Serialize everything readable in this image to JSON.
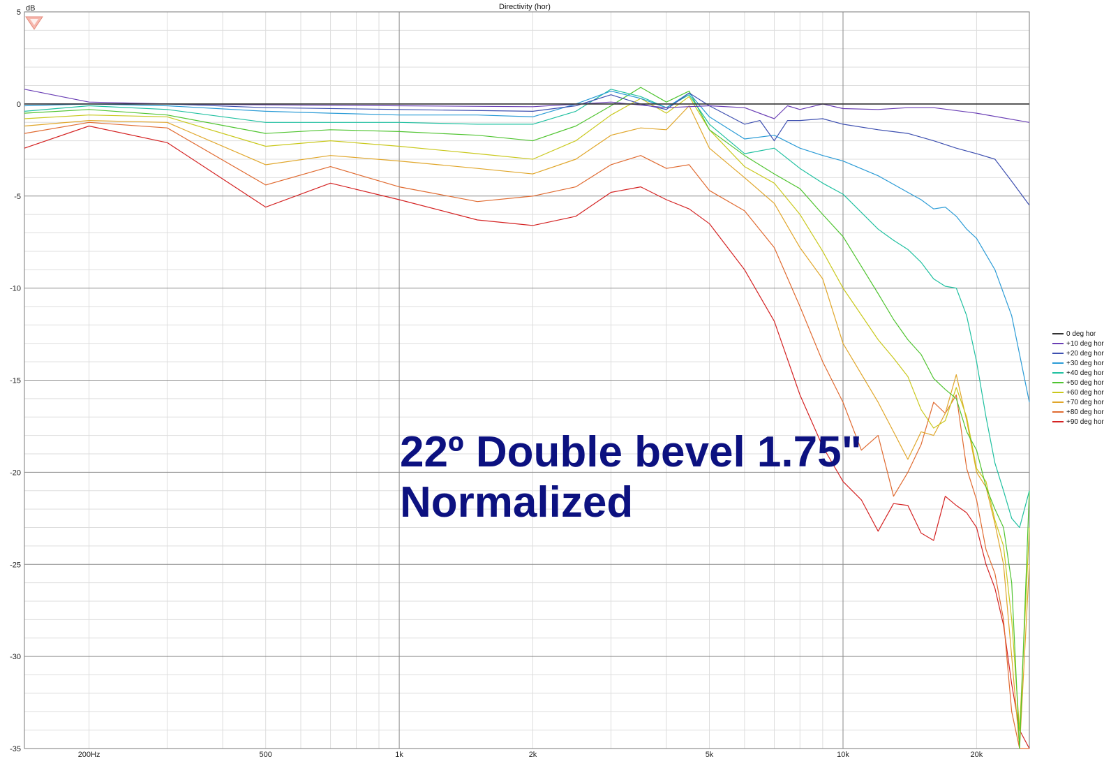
{
  "window": {
    "title": "Directivity (hor)"
  },
  "chart_data": {
    "type": "line",
    "title": "Directivity (hor)",
    "ylabel": "dB",
    "xlabel": "",
    "x_scale": "log",
    "xlim": [
      143,
      26300
    ],
    "ylim": [
      -35,
      5
    ],
    "grid": true,
    "legend_position": "right",
    "x_tick_labels": [
      {
        "value": 200,
        "label": "200Hz"
      },
      {
        "value": 500,
        "label": "500"
      },
      {
        "value": 1000,
        "label": "1k"
      },
      {
        "value": 2000,
        "label": "2k"
      },
      {
        "value": 5000,
        "label": "5k"
      },
      {
        "value": 10000,
        "label": "10k"
      },
      {
        "value": 20000,
        "label": "20k"
      }
    ],
    "y_tick_labels": [
      {
        "value": 5,
        "label": "5"
      },
      {
        "value": 0,
        "label": "0"
      },
      {
        "value": -5,
        "label": "-5"
      },
      {
        "value": -10,
        "label": "-10"
      },
      {
        "value": -15,
        "label": "-15"
      },
      {
        "value": -20,
        "label": "-20"
      },
      {
        "value": -25,
        "label": "-25"
      },
      {
        "value": -30,
        "label": "-30"
      },
      {
        "value": -35,
        "label": "-35"
      }
    ],
    "annotation": [
      "22º Double bevel 1.75\"",
      "Normalized"
    ],
    "series": [
      {
        "name": "0 deg hor",
        "color": "#333333",
        "x": [
          143,
          1000,
          2000,
          5000,
          10000,
          20000,
          26300
        ],
        "y": [
          0,
          0,
          0,
          0,
          0,
          0,
          0
        ]
      },
      {
        "name": "+10 deg hor",
        "color": "#6a3fb5",
        "x": [
          143,
          200,
          300,
          500,
          1000,
          2000,
          3000,
          4000,
          5000,
          6000,
          7000,
          7500,
          8000,
          9000,
          10000,
          12000,
          14000,
          16000,
          20000,
          26300
        ],
        "y": [
          0.8,
          0.1,
          0,
          -0.05,
          -0.1,
          -0.15,
          0.1,
          -0.2,
          -0.1,
          -0.2,
          -0.8,
          -0.1,
          -0.3,
          0,
          -0.25,
          -0.3,
          -0.2,
          -0.2,
          -0.5,
          -1.0
        ]
      },
      {
        "name": "+20 deg hor",
        "color": "#3d4fb0",
        "x": [
          143,
          200,
          300,
          500,
          1000,
          2000,
          2500,
          3000,
          3500,
          4000,
          4500,
          5000,
          6000,
          6500,
          7000,
          7500,
          8000,
          9000,
          10000,
          12000,
          14000,
          16000,
          18000,
          20000,
          22000,
          24000,
          26300
        ],
        "y": [
          0,
          0,
          0,
          -0.2,
          -0.3,
          -0.4,
          -0.1,
          0.5,
          0,
          -0.3,
          0.6,
          -0.1,
          -1.1,
          -0.9,
          -2.0,
          -0.9,
          -0.9,
          -0.8,
          -1.1,
          -1.4,
          -1.6,
          -2.0,
          -2.4,
          -2.7,
          -3.0,
          -4.2,
          -5.5
        ]
      },
      {
        "name": "+30 deg hor",
        "color": "#2a9bd6",
        "x": [
          143,
          200,
          300,
          500,
          700,
          1000,
          1500,
          2000,
          2500,
          3000,
          3500,
          4000,
          4500,
          5000,
          6000,
          7000,
          8000,
          9000,
          10000,
          12000,
          14000,
          15000,
          16000,
          17000,
          18000,
          19000,
          20000,
          22000,
          24000,
          26300
        ],
        "y": [
          -0.1,
          0,
          -0.1,
          -0.4,
          -0.5,
          -0.6,
          -0.6,
          -0.7,
          0,
          0.7,
          0.3,
          -0.2,
          0.6,
          -0.7,
          -1.9,
          -1.7,
          -2.4,
          -2.8,
          -3.1,
          -3.9,
          -4.8,
          -5.2,
          -5.7,
          -5.6,
          -6.1,
          -6.8,
          -7.3,
          -9.0,
          -11.5,
          -16.2
        ]
      },
      {
        "name": "+40 deg hor",
        "color": "#1fc0a0",
        "x": [
          143,
          200,
          300,
          500,
          700,
          1000,
          1500,
          2000,
          2500,
          3000,
          3500,
          4000,
          4500,
          5000,
          6000,
          7000,
          8000,
          9000,
          10000,
          12000,
          13000,
          14000,
          15000,
          16000,
          17000,
          18000,
          19000,
          20000,
          21000,
          22000,
          23000,
          24000,
          25000,
          26300
        ],
        "y": [
          -0.4,
          -0.1,
          -0.3,
          -1.0,
          -1.0,
          -1.0,
          -1.1,
          -1.1,
          -0.4,
          0.8,
          0.4,
          -0.2,
          0.5,
          -1.1,
          -2.7,
          -2.4,
          -3.5,
          -4.3,
          -4.9,
          -6.8,
          -7.4,
          -7.9,
          -8.6,
          -9.5,
          -9.9,
          -10.0,
          -11.5,
          -14.0,
          -17.0,
          -19.5,
          -21.0,
          -22.5,
          -23.0,
          -21.0
        ]
      },
      {
        "name": "+50 deg hor",
        "color": "#4fc430",
        "x": [
          143,
          200,
          300,
          500,
          700,
          1000,
          1500,
          2000,
          2500,
          3000,
          3500,
          4000,
          4500,
          5000,
          6000,
          7000,
          8000,
          9000,
          10000,
          12000,
          13000,
          14000,
          15000,
          16000,
          17000,
          18000,
          19000,
          20000,
          21000,
          22000,
          23000,
          24000,
          25000,
          26300
        ],
        "y": [
          -0.5,
          -0.3,
          -0.6,
          -1.6,
          -1.4,
          -1.5,
          -1.7,
          -2.0,
          -1.2,
          -0.1,
          0.9,
          0.1,
          0.7,
          -1.4,
          -2.8,
          -3.8,
          -4.6,
          -6.0,
          -7.2,
          -10.3,
          -11.7,
          -12.8,
          -13.6,
          -14.9,
          -15.5,
          -16.0,
          -17.8,
          -18.8,
          -20.8,
          -22.0,
          -23.0,
          -26.0,
          -35.0,
          -21.0
        ]
      },
      {
        "name": "+60 deg hor",
        "color": "#c9c81c",
        "x": [
          143,
          200,
          300,
          500,
          700,
          1000,
          1500,
          2000,
          2500,
          3000,
          3500,
          4000,
          4500,
          5000,
          6000,
          7000,
          8000,
          9000,
          10000,
          12000,
          13000,
          14000,
          15000,
          16000,
          17000,
          18000,
          19000,
          20000,
          21000,
          22000,
          23000,
          24000,
          25000,
          26300
        ],
        "y": [
          -0.8,
          -0.6,
          -0.7,
          -2.3,
          -2.0,
          -2.3,
          -2.7,
          -3.0,
          -2.0,
          -0.6,
          0.3,
          -0.5,
          0.4,
          -1.4,
          -3.4,
          -4.3,
          -6.0,
          -8.0,
          -10.0,
          -12.8,
          -13.8,
          -14.8,
          -16.6,
          -17.6,
          -17.2,
          -15.4,
          -17.0,
          -19.8,
          -20.5,
          -22.6,
          -24.0,
          -28.0,
          -34.0,
          -23.0
        ]
      },
      {
        "name": "+70 deg hor",
        "color": "#e0a62a",
        "x": [
          143,
          200,
          300,
          500,
          700,
          1000,
          1500,
          2000,
          2500,
          3000,
          3500,
          4000,
          4500,
          5000,
          6000,
          7000,
          8000,
          9000,
          10000,
          12000,
          13000,
          14000,
          15000,
          16000,
          17000,
          18000,
          19000,
          20000,
          21000,
          22000,
          23000,
          24000,
          25000,
          26300
        ],
        "y": [
          -1.2,
          -0.9,
          -1.0,
          -3.3,
          -2.8,
          -3.1,
          -3.5,
          -3.8,
          -3.0,
          -1.7,
          -1.3,
          -1.4,
          -0.1,
          -2.4,
          -4.0,
          -5.4,
          -7.8,
          -9.5,
          -13.0,
          -16.2,
          -17.8,
          -19.3,
          -17.8,
          -18.0,
          -16.8,
          -14.7,
          -17.2,
          -20.0,
          -20.8,
          -22.8,
          -25.0,
          -30.0,
          -35.0,
          -25.0
        ]
      },
      {
        "name": "+80 deg hor",
        "color": "#e06a30",
        "x": [
          143,
          200,
          300,
          500,
          700,
          1000,
          1500,
          2000,
          2500,
          3000,
          3500,
          4000,
          4500,
          5000,
          6000,
          7000,
          8000,
          9000,
          10000,
          11000,
          12000,
          13000,
          14000,
          15000,
          16000,
          17000,
          18000,
          19000,
          20000,
          21000,
          22000,
          23000,
          24000,
          25000,
          26300
        ],
        "y": [
          -1.6,
          -1.0,
          -1.3,
          -4.4,
          -3.4,
          -4.5,
          -5.3,
          -5.0,
          -4.5,
          -3.3,
          -2.8,
          -3.5,
          -3.3,
          -4.7,
          -5.8,
          -7.8,
          -11.0,
          -14.0,
          -16.2,
          -18.8,
          -18.0,
          -21.3,
          -20.0,
          -18.5,
          -16.2,
          -16.8,
          -15.8,
          -19.8,
          -21.5,
          -24.2,
          -25.5,
          -28.0,
          -33.0,
          -35.0,
          -35.0
        ]
      },
      {
        "name": "+90 deg hor",
        "color": "#d42222",
        "x": [
          143,
          200,
          300,
          500,
          700,
          1000,
          1500,
          2000,
          2500,
          3000,
          3500,
          4000,
          4500,
          5000,
          6000,
          7000,
          8000,
          9000,
          10000,
          11000,
          12000,
          13000,
          14000,
          15000,
          16000,
          17000,
          18000,
          19000,
          20000,
          21000,
          22000,
          23000,
          24000,
          25000,
          26300
        ],
        "y": [
          -2.4,
          -1.2,
          -2.1,
          -5.6,
          -4.3,
          -5.2,
          -6.3,
          -6.6,
          -6.1,
          -4.8,
          -4.5,
          -5.2,
          -5.7,
          -6.5,
          -9.0,
          -11.8,
          -15.8,
          -18.6,
          -20.5,
          -21.5,
          -23.2,
          -21.7,
          -21.8,
          -23.3,
          -23.7,
          -21.3,
          -21.8,
          -22.2,
          -23.0,
          -25.0,
          -26.3,
          -28.3,
          -31.5,
          -34.0,
          -35.0
        ]
      }
    ]
  }
}
